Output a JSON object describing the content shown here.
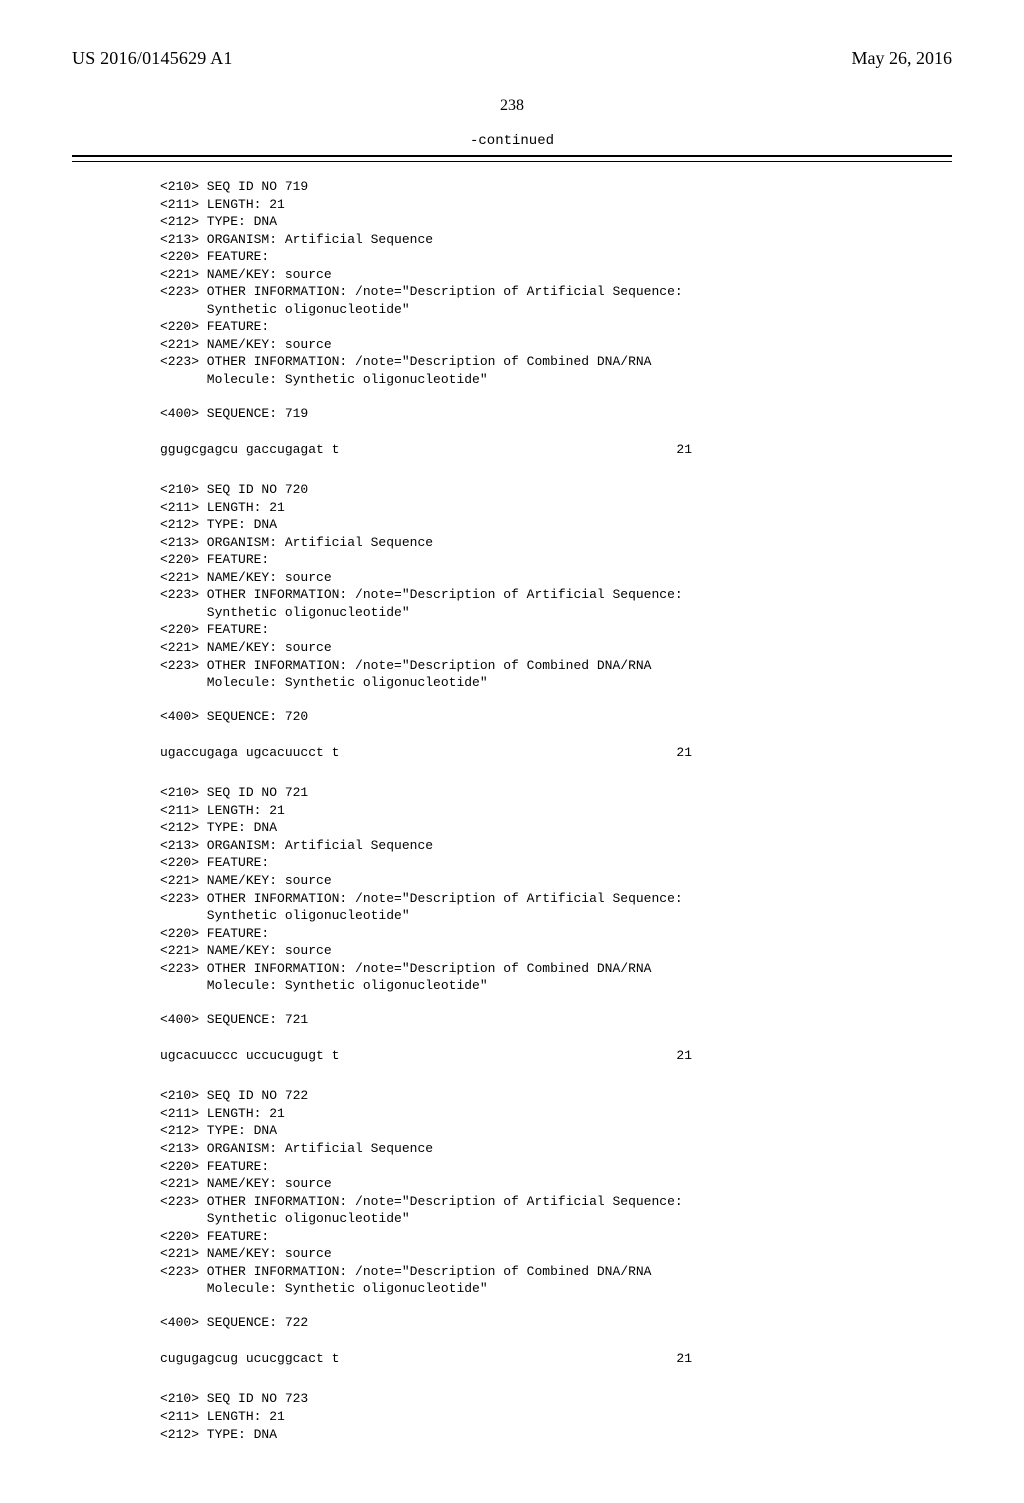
{
  "header": {
    "pub_number": "US 2016/0145629 A1",
    "pub_date": "May 26, 2016"
  },
  "page_number": "238",
  "continued_label": "-continued",
  "entries": [
    {
      "lines": [
        "<210> SEQ ID NO 719",
        "<211> LENGTH: 21",
        "<212> TYPE: DNA",
        "<213> ORGANISM: Artificial Sequence",
        "<220> FEATURE:",
        "<221> NAME/KEY: source",
        "<223> OTHER INFORMATION: /note=\"Description of Artificial Sequence:",
        "      Synthetic oligonucleotide\"",
        "<220> FEATURE:",
        "<221> NAME/KEY: source",
        "<223> OTHER INFORMATION: /note=\"Description of Combined DNA/RNA",
        "      Molecule: Synthetic oligonucleotide\""
      ],
      "sequence_header": "<400> SEQUENCE: 719",
      "sequence": "ggugcgagcu gaccugagat t",
      "seq_len": "21"
    },
    {
      "lines": [
        "<210> SEQ ID NO 720",
        "<211> LENGTH: 21",
        "<212> TYPE: DNA",
        "<213> ORGANISM: Artificial Sequence",
        "<220> FEATURE:",
        "<221> NAME/KEY: source",
        "<223> OTHER INFORMATION: /note=\"Description of Artificial Sequence:",
        "      Synthetic oligonucleotide\"",
        "<220> FEATURE:",
        "<221> NAME/KEY: source",
        "<223> OTHER INFORMATION: /note=\"Description of Combined DNA/RNA",
        "      Molecule: Synthetic oligonucleotide\""
      ],
      "sequence_header": "<400> SEQUENCE: 720",
      "sequence": "ugaccugaga ugcacuucct t",
      "seq_len": "21"
    },
    {
      "lines": [
        "<210> SEQ ID NO 721",
        "<211> LENGTH: 21",
        "<212> TYPE: DNA",
        "<213> ORGANISM: Artificial Sequence",
        "<220> FEATURE:",
        "<221> NAME/KEY: source",
        "<223> OTHER INFORMATION: /note=\"Description of Artificial Sequence:",
        "      Synthetic oligonucleotide\"",
        "<220> FEATURE:",
        "<221> NAME/KEY: source",
        "<223> OTHER INFORMATION: /note=\"Description of Combined DNA/RNA",
        "      Molecule: Synthetic oligonucleotide\""
      ],
      "sequence_header": "<400> SEQUENCE: 721",
      "sequence": "ugcacuuccc uccucugugt t",
      "seq_len": "21"
    },
    {
      "lines": [
        "<210> SEQ ID NO 722",
        "<211> LENGTH: 21",
        "<212> TYPE: DNA",
        "<213> ORGANISM: Artificial Sequence",
        "<220> FEATURE:",
        "<221> NAME/KEY: source",
        "<223> OTHER INFORMATION: /note=\"Description of Artificial Sequence:",
        "      Synthetic oligonucleotide\"",
        "<220> FEATURE:",
        "<221> NAME/KEY: source",
        "<223> OTHER INFORMATION: /note=\"Description of Combined DNA/RNA",
        "      Molecule: Synthetic oligonucleotide\""
      ],
      "sequence_header": "<400> SEQUENCE: 722",
      "sequence": "cugugagcug ucucggcact t",
      "seq_len": "21"
    },
    {
      "lines": [
        "<210> SEQ ID NO 723",
        "<211> LENGTH: 21",
        "<212> TYPE: DNA"
      ],
      "sequence_header": "",
      "sequence": "",
      "seq_len": ""
    }
  ]
}
